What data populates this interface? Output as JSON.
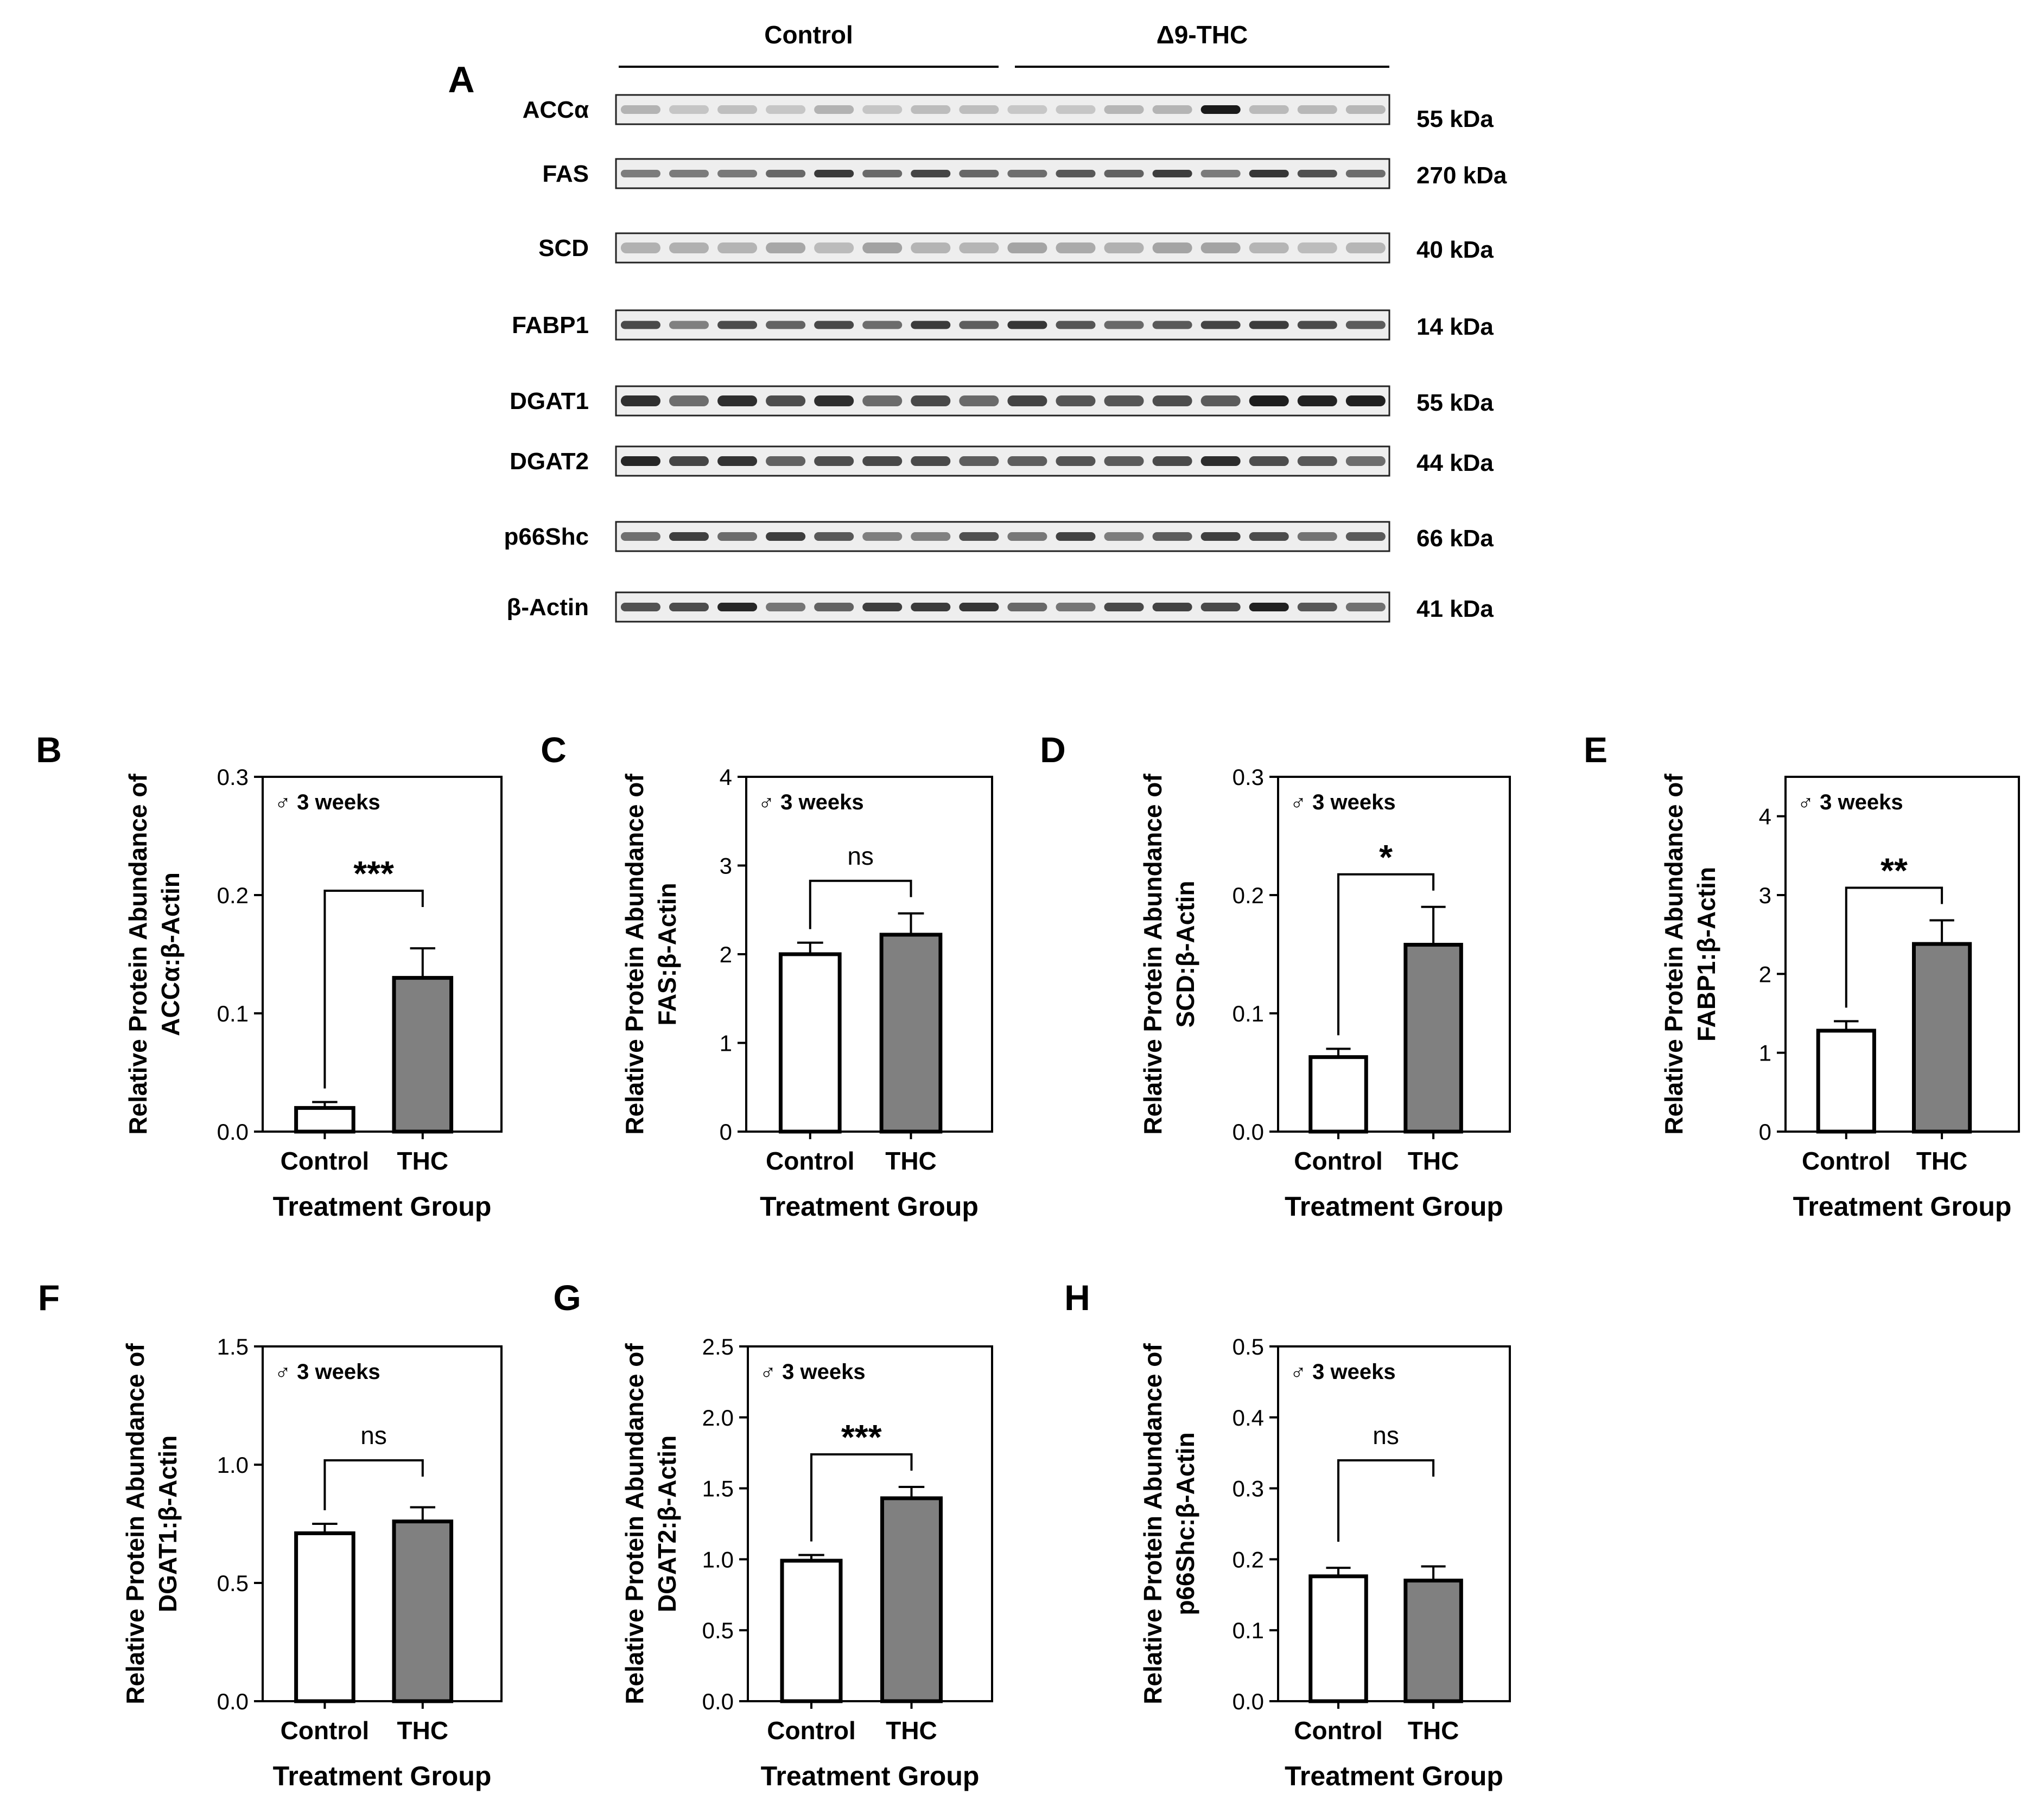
{
  "blot": {
    "panel_label": "A",
    "groups": [
      {
        "label": "Control"
      },
      {
        "label": "Δ9-THC"
      }
    ],
    "lane_count": 16,
    "rows": [
      {
        "protein": "ACCα",
        "size": "55 kDa"
      },
      {
        "protein": "FAS",
        "size": "270 kDa"
      },
      {
        "protein": "SCD",
        "size": "40 kDa"
      },
      {
        "protein": "FABP1",
        "size": "14 kDa"
      },
      {
        "protein": "DGAT1",
        "size": "55 kDa"
      },
      {
        "protein": "DGAT2",
        "size": "44 kDa"
      },
      {
        "protein": "p66Shc",
        "size": "66 kDa"
      },
      {
        "protein": "β-Actin",
        "size": "41 kDa"
      }
    ]
  },
  "chart_data": [
    {
      "panel": "B",
      "type": "bar",
      "title": "",
      "inset_label": "♂ 3 weeks",
      "ylabel_lines": [
        "Relative Protein Abundance of",
        "ACCα:β-Actin"
      ],
      "xlabel": "Treatment Group",
      "categories": [
        "Control",
        "THC"
      ],
      "values": [
        0.02,
        0.13
      ],
      "errors": [
        0.005,
        0.025
      ],
      "ylim": [
        0,
        0.3
      ],
      "yticks": [
        "0.0",
        "0.1",
        "0.2",
        "0.3"
      ],
      "significance": "***"
    },
    {
      "panel": "C",
      "type": "bar",
      "title": "",
      "inset_label": "♂ 3 weeks",
      "ylabel_lines": [
        "Relative Protein Abundance of",
        "FAS:β-Actin"
      ],
      "xlabel": "Treatment Group",
      "categories": [
        "Control",
        "THC"
      ],
      "values": [
        2.0,
        2.22
      ],
      "errors": [
        0.13,
        0.24
      ],
      "ylim": [
        0,
        4
      ],
      "yticks": [
        "0",
        "1",
        "2",
        "3",
        "4"
      ],
      "significance": "ns"
    },
    {
      "panel": "D",
      "type": "bar",
      "title": "",
      "inset_label": "♂ 3 weeks",
      "ylabel_lines": [
        "Relative Protein Abundance of",
        "SCD:β-Actin"
      ],
      "xlabel": "Treatment Group",
      "categories": [
        "Control",
        "THC"
      ],
      "values": [
        0.063,
        0.158
      ],
      "errors": [
        0.007,
        0.032
      ],
      "ylim": [
        0,
        0.3
      ],
      "yticks": [
        "0.0",
        "0.1",
        "0.2",
        "0.3"
      ],
      "significance": "*"
    },
    {
      "panel": "E",
      "type": "bar",
      "title": "",
      "inset_label": "♂ 3 weeks",
      "ylabel_lines": [
        "Relative Protein Abundance of",
        "FABP1:β-Actin"
      ],
      "xlabel": "Treatment Group",
      "categories": [
        "Control",
        "THC"
      ],
      "values": [
        1.28,
        2.38
      ],
      "errors": [
        0.12,
        0.3
      ],
      "ylim": [
        0,
        4.5
      ],
      "yticks": [
        "0",
        "1",
        "2",
        "3",
        "4"
      ],
      "significance": "**"
    },
    {
      "panel": "F",
      "type": "bar",
      "title": "",
      "inset_label": "♂ 3 weeks",
      "ylabel_lines": [
        "Relative Protein Abundance of",
        "DGAT1:β-Actin"
      ],
      "xlabel": "Treatment Group",
      "categories": [
        "Control",
        "THC"
      ],
      "values": [
        0.71,
        0.76
      ],
      "errors": [
        0.04,
        0.06
      ],
      "ylim": [
        0,
        1.5
      ],
      "yticks": [
        "0.0",
        "0.5",
        "1.0",
        "1.5"
      ],
      "significance": "ns"
    },
    {
      "panel": "G",
      "type": "bar",
      "title": "",
      "inset_label": "♂ 3 weeks",
      "ylabel_lines": [
        "Relative Protein Abundance of",
        "DGAT2:β-Actin"
      ],
      "xlabel": "Treatment Group",
      "categories": [
        "Control",
        "THC"
      ],
      "values": [
        0.99,
        1.43
      ],
      "errors": [
        0.04,
        0.08
      ],
      "ylim": [
        0,
        2.5
      ],
      "yticks": [
        "0.0",
        "0.5",
        "1.0",
        "1.5",
        "2.0",
        "2.5"
      ],
      "significance": "***"
    },
    {
      "panel": "H",
      "type": "bar",
      "title": "",
      "inset_label": "♂ 3 weeks",
      "ylabel_lines": [
        "Relative Protein Abundance of",
        "p66Shc:β-Actin"
      ],
      "xlabel": "Treatment Group",
      "categories": [
        "Control",
        "THC"
      ],
      "values": [
        0.176,
        0.17
      ],
      "errors": [
        0.012,
        0.02
      ],
      "ylim": [
        0,
        0.5
      ],
      "yticks": [
        "0.0",
        "0.1",
        "0.2",
        "0.3",
        "0.4",
        "0.5"
      ],
      "significance": "ns"
    }
  ],
  "colors": {
    "control_fill": "#ffffff",
    "thc_fill": "#808080",
    "axis": "#000000",
    "text": "#000000"
  }
}
